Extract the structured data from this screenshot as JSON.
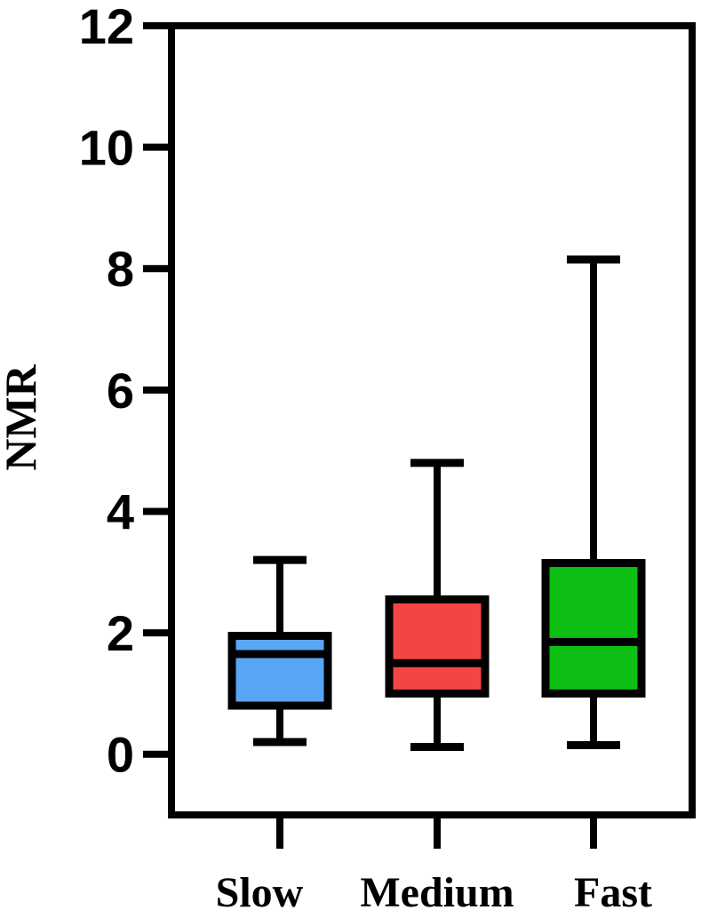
{
  "chart_data": {
    "type": "boxplot",
    "ylabel": "NMR",
    "ylim": [
      -1,
      12
    ],
    "yticks": [
      0,
      2,
      4,
      6,
      8,
      10,
      12
    ],
    "categories": [
      "Slow",
      "Medium",
      "Fast"
    ],
    "boxes": [
      {
        "category": "Slow",
        "min": 0.2,
        "q1": 0.8,
        "median": 1.65,
        "q3": 1.95,
        "max": 3.2,
        "color": "#58a6f5"
      },
      {
        "category": "Medium",
        "min": 0.12,
        "q1": 1.0,
        "median": 1.5,
        "q3": 2.55,
        "max": 4.8,
        "color": "#f44545"
      },
      {
        "category": "Fast",
        "min": 0.15,
        "q1": 1.0,
        "median": 1.85,
        "q3": 3.15,
        "max": 8.15,
        "color": "#0cbf12"
      }
    ]
  }
}
